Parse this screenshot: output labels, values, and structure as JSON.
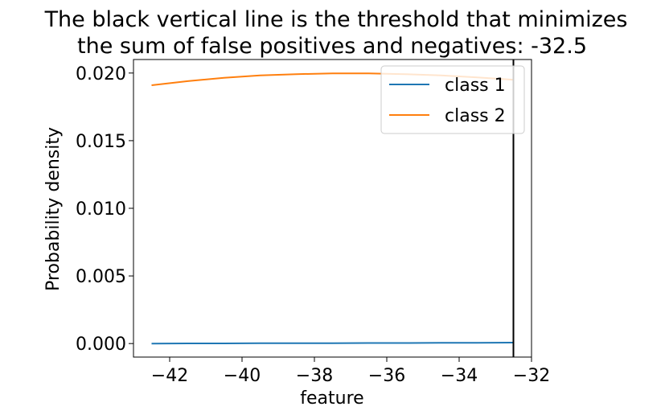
{
  "chart_data": {
    "type": "line",
    "title_lines": [
      "The black vertical line is the threshold that minimizes",
      "the sum of false positives and negatives: -32.5"
    ],
    "xlabel": "feature",
    "ylabel": "Probability density",
    "xlim": [
      -43.0,
      -32.0
    ],
    "ylim": [
      -0.001,
      0.021
    ],
    "x_ticks": [
      -42,
      -40,
      -38,
      -36,
      -34,
      -32
    ],
    "x_tick_labels": [
      "−42",
      "−40",
      "−38",
      "−36",
      "−34",
      "−32"
    ],
    "y_ticks": [
      0.0,
      0.005,
      0.01,
      0.015,
      0.02
    ],
    "y_tick_labels": [
      "0.000",
      "0.005",
      "0.010",
      "0.015",
      "0.020"
    ],
    "grid": false,
    "legend_position": "top-right",
    "threshold_x": -32.5,
    "threshold_color": "#000000",
    "series": [
      {
        "name": "class 1",
        "color": "#1f77b4",
        "x": [
          -42.5,
          -41.5,
          -40.5,
          -39.5,
          -38.5,
          -37.5,
          -36.5,
          -35.5,
          -34.5,
          -33.5,
          -32.5
        ],
        "y": [
          0.0,
          1e-05,
          1e-05,
          2e-05,
          2e-05,
          3e-05,
          4e-05,
          4e-05,
          5e-05,
          6e-05,
          7e-05
        ]
      },
      {
        "name": "class 2",
        "color": "#ff7f0e",
        "x": [
          -42.5,
          -41.5,
          -40.5,
          -39.5,
          -38.5,
          -37.5,
          -36.5,
          -35.5,
          -34.5,
          -33.5,
          -32.5
        ],
        "y": [
          0.0191,
          0.0194,
          0.01965,
          0.01982,
          0.01992,
          0.01997,
          0.01997,
          0.01992,
          0.01982,
          0.01968,
          0.0195
        ]
      }
    ]
  }
}
